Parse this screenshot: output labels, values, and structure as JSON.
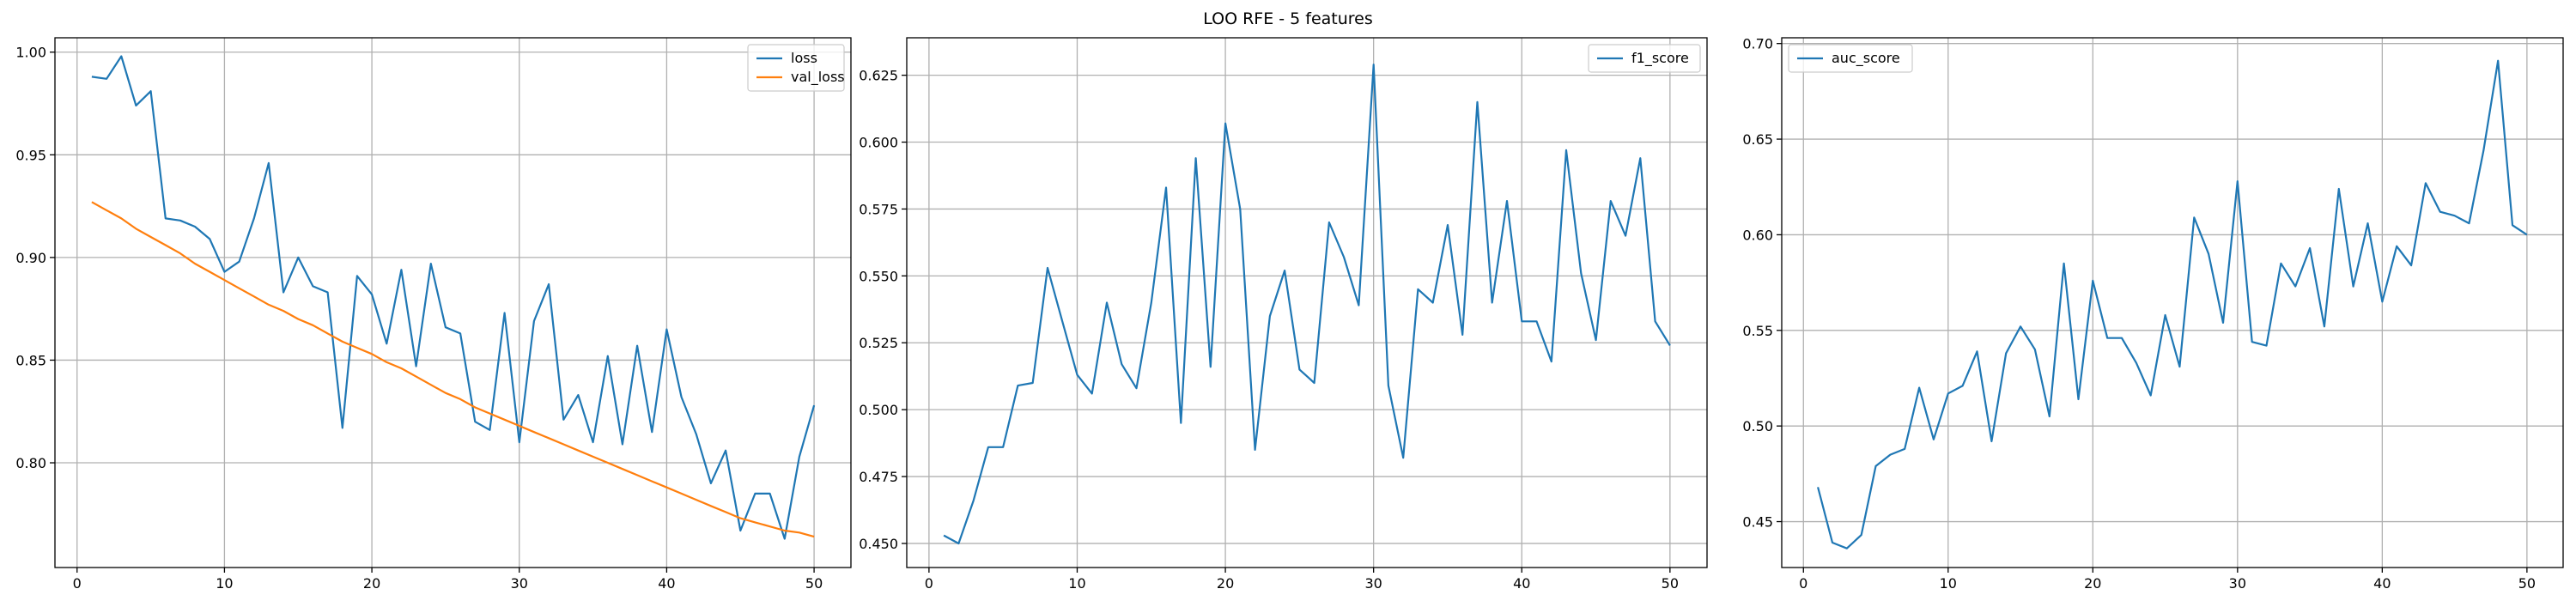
{
  "figure": {
    "title": "LOO RFE - 5 features"
  },
  "chart_data": [
    {
      "type": "line",
      "title": "",
      "xlabel": "",
      "ylabel": "",
      "xlim": [
        -1.5,
        52.5
      ],
      "ylim": [
        0.749,
        1.007
      ],
      "xticks": [
        0,
        10,
        20,
        30,
        40,
        50
      ],
      "yticks": [
        0.8,
        0.85,
        0.9,
        0.95,
        1.0
      ],
      "ytick_labels": [
        "0.80",
        "0.85",
        "0.90",
        "0.95",
        "1.00"
      ],
      "grid": true,
      "legend_position": "top-right",
      "series": [
        {
          "name": "loss",
          "color": "#1f77b4",
          "x": [
            1,
            2,
            3,
            4,
            5,
            6,
            7,
            8,
            9,
            10,
            11,
            12,
            13,
            14,
            15,
            16,
            17,
            18,
            19,
            20,
            21,
            22,
            23,
            24,
            25,
            26,
            27,
            28,
            29,
            30,
            31,
            32,
            33,
            34,
            35,
            36,
            37,
            38,
            39,
            40,
            41,
            42,
            43,
            44,
            45,
            46,
            47,
            48,
            49,
            50
          ],
          "values": [
            0.988,
            0.987,
            0.998,
            0.974,
            0.981,
            0.919,
            0.918,
            0.915,
            0.909,
            0.893,
            0.898,
            0.919,
            0.946,
            0.883,
            0.9,
            0.886,
            0.883,
            0.817,
            0.891,
            0.882,
            0.858,
            0.894,
            0.847,
            0.897,
            0.866,
            0.863,
            0.82,
            0.816,
            0.873,
            0.81,
            0.869,
            0.887,
            0.821,
            0.833,
            0.81,
            0.852,
            0.809,
            0.857,
            0.815,
            0.865,
            0.832,
            0.814,
            0.79,
            0.806,
            0.767,
            0.785,
            0.785,
            0.763,
            0.803,
            0.828
          ]
        },
        {
          "name": "val_loss",
          "color": "#ff7f0e",
          "x": [
            1,
            2,
            3,
            4,
            5,
            6,
            7,
            8,
            9,
            10,
            11,
            12,
            13,
            14,
            15,
            16,
            17,
            18,
            19,
            20,
            21,
            22,
            23,
            24,
            25,
            26,
            27,
            28,
            29,
            30,
            31,
            32,
            33,
            34,
            35,
            36,
            37,
            38,
            39,
            40,
            41,
            42,
            43,
            44,
            45,
            46,
            47,
            48,
            49,
            50
          ],
          "values": [
            0.927,
            0.923,
            0.919,
            0.914,
            0.91,
            0.906,
            0.902,
            0.897,
            0.893,
            0.889,
            0.885,
            0.881,
            0.877,
            0.874,
            0.87,
            0.867,
            0.863,
            0.859,
            0.856,
            0.853,
            0.849,
            0.846,
            0.842,
            0.838,
            0.834,
            0.831,
            0.827,
            0.824,
            0.821,
            0.818,
            0.815,
            0.812,
            0.809,
            0.806,
            0.803,
            0.8,
            0.797,
            0.794,
            0.791,
            0.788,
            0.785,
            0.782,
            0.779,
            0.776,
            0.773,
            0.771,
            0.769,
            0.767,
            0.766,
            0.764
          ]
        }
      ]
    },
    {
      "type": "line",
      "title": "",
      "xlabel": "",
      "ylabel": "",
      "xlim": [
        -1.5,
        52.5
      ],
      "ylim": [
        0.441,
        0.639
      ],
      "xticks": [
        0,
        10,
        20,
        30,
        40,
        50
      ],
      "yticks": [
        0.45,
        0.475,
        0.5,
        0.525,
        0.55,
        0.575,
        0.6,
        0.625
      ],
      "ytick_labels": [
        "0.450",
        "0.475",
        "0.500",
        "0.525",
        "0.550",
        "0.575",
        "0.600",
        "0.625"
      ],
      "grid": true,
      "legend_position": "top-right",
      "series": [
        {
          "name": "f1_score",
          "color": "#1f77b4",
          "x": [
            1,
            2,
            3,
            4,
            5,
            6,
            7,
            8,
            9,
            10,
            11,
            12,
            13,
            14,
            15,
            16,
            17,
            18,
            19,
            20,
            21,
            22,
            23,
            24,
            25,
            26,
            27,
            28,
            29,
            30,
            31,
            32,
            33,
            34,
            35,
            36,
            37,
            38,
            39,
            40,
            41,
            42,
            43,
            44,
            45,
            46,
            47,
            48,
            49,
            50
          ],
          "values": [
            0.453,
            0.45,
            0.466,
            0.486,
            0.486,
            0.509,
            0.51,
            0.553,
            0.533,
            0.513,
            0.506,
            0.54,
            0.517,
            0.508,
            0.54,
            0.583,
            0.495,
            0.594,
            0.516,
            0.607,
            0.575,
            0.485,
            0.535,
            0.552,
            0.515,
            0.51,
            0.57,
            0.557,
            0.539,
            0.629,
            0.509,
            0.482,
            0.545,
            0.54,
            0.569,
            0.528,
            0.615,
            0.54,
            0.578,
            0.533,
            0.533,
            0.518,
            0.597,
            0.551,
            0.526,
            0.578,
            0.565,
            0.594,
            0.533,
            0.524
          ]
        }
      ]
    },
    {
      "type": "line",
      "title": "",
      "xlabel": "",
      "ylabel": "",
      "xlim": [
        -1.5,
        52.5
      ],
      "ylim": [
        0.426,
        0.703
      ],
      "xticks": [
        0,
        10,
        20,
        30,
        40,
        50
      ],
      "yticks": [
        0.45,
        0.5,
        0.55,
        0.6,
        0.65,
        0.7
      ],
      "ytick_labels": [
        "0.45",
        "0.50",
        "0.55",
        "0.60",
        "0.65",
        "0.70"
      ],
      "grid": true,
      "legend_position": "top-left",
      "series": [
        {
          "name": "auc_score",
          "color": "#1f77b4",
          "x": [
            1,
            2,
            3,
            4,
            5,
            6,
            7,
            8,
            9,
            10,
            11,
            12,
            13,
            14,
            15,
            16,
            17,
            18,
            19,
            20,
            21,
            22,
            23,
            24,
            25,
            26,
            27,
            28,
            29,
            30,
            31,
            32,
            33,
            34,
            35,
            36,
            37,
            38,
            39,
            40,
            41,
            42,
            43,
            44,
            45,
            46,
            47,
            48,
            49,
            50
          ],
          "values": [
            0.468,
            0.439,
            0.436,
            0.443,
            0.479,
            0.485,
            0.488,
            0.52,
            0.493,
            0.517,
            0.521,
            0.539,
            0.492,
            0.538,
            0.552,
            0.54,
            0.505,
            0.585,
            0.514,
            0.576,
            0.546,
            0.546,
            0.533,
            0.516,
            0.558,
            0.531,
            0.609,
            0.59,
            0.554,
            0.628,
            0.544,
            0.542,
            0.585,
            0.573,
            0.593,
            0.552,
            0.624,
            0.573,
            0.606,
            0.565,
            0.594,
            0.584,
            0.627,
            0.612,
            0.61,
            0.606,
            0.644,
            0.691,
            0.605,
            0.6
          ]
        }
      ]
    }
  ]
}
